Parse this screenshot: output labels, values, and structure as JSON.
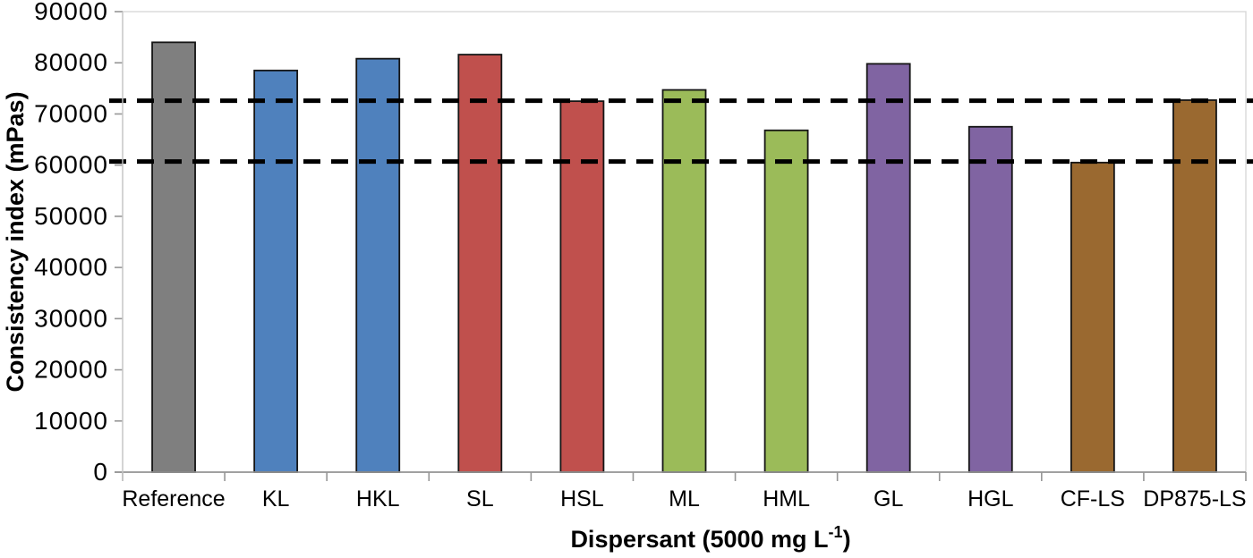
{
  "chart_data": {
    "type": "bar",
    "title": "",
    "categories": [
      "Reference",
      "KL",
      "HKL",
      "SL",
      "HSL",
      "ML",
      "HML",
      "GL",
      "HGL",
      "CF-LS",
      "DP875-LS"
    ],
    "values": [
      84000,
      78500,
      80800,
      81600,
      72500,
      74700,
      66800,
      79800,
      67500,
      60500,
      72700
    ],
    "bar_colors": [
      "#7F7F7F",
      "#4F81BD",
      "#4F81BD",
      "#C0504D",
      "#C0504D",
      "#9BBB59",
      "#9BBB59",
      "#8064A2",
      "#8064A2",
      "#9A6930",
      "#9A6930"
    ],
    "bar_outline_color": "#151515",
    "ylabel": "Consistency index (mPas)",
    "xlabel_main": "Dispersant (5000 mg L",
    "xlabel_sup": "-1",
    "xlabel_end": ")",
    "ylim": [
      0,
      90000
    ],
    "ytick_values": [
      0,
      10000,
      20000,
      30000,
      40000,
      50000,
      60000,
      70000,
      80000,
      90000
    ],
    "ytick_labels": [
      "0",
      "10000",
      "20000",
      "30000",
      "40000",
      "50000",
      "60000",
      "70000",
      "80000",
      "90000"
    ],
    "grid": "off",
    "legend": "none",
    "reference_lines": [
      {
        "value": 72600,
        "style": "dashed",
        "color": "#000000"
      },
      {
        "value": 60700,
        "style": "dashed",
        "color": "#000000"
      }
    ],
    "axis_color": "#969696",
    "plot_border_color": "#D9D9D9"
  }
}
